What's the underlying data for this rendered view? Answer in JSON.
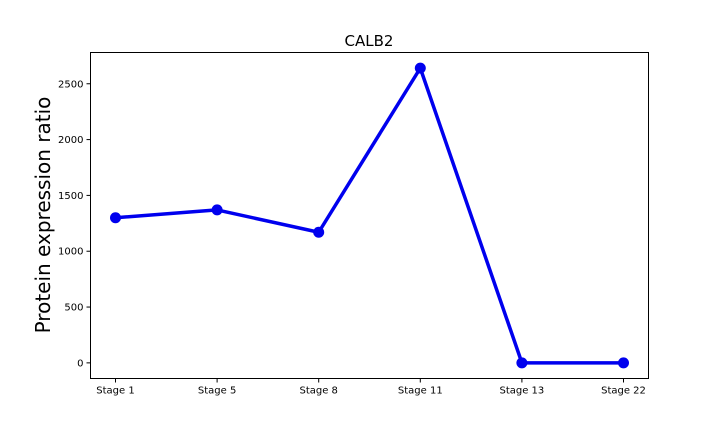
{
  "chart_data": {
    "type": "line",
    "title": "CALB2",
    "xlabel": "",
    "ylabel": "Protein expression ratio",
    "categories": [
      "Stage 1",
      "Stage 5",
      "Stage 8",
      "Stage 11",
      "Stage 13",
      "Stage 22"
    ],
    "series": [
      {
        "values": [
          1300,
          1370,
          1170,
          2640,
          0,
          0
        ]
      }
    ],
    "ylim": [
      -140,
      2780
    ],
    "yticks": [
      0,
      500,
      1000,
      1500,
      2000,
      2500
    ],
    "grid": false,
    "line_color": "#0000ee",
    "marker": "circle"
  }
}
